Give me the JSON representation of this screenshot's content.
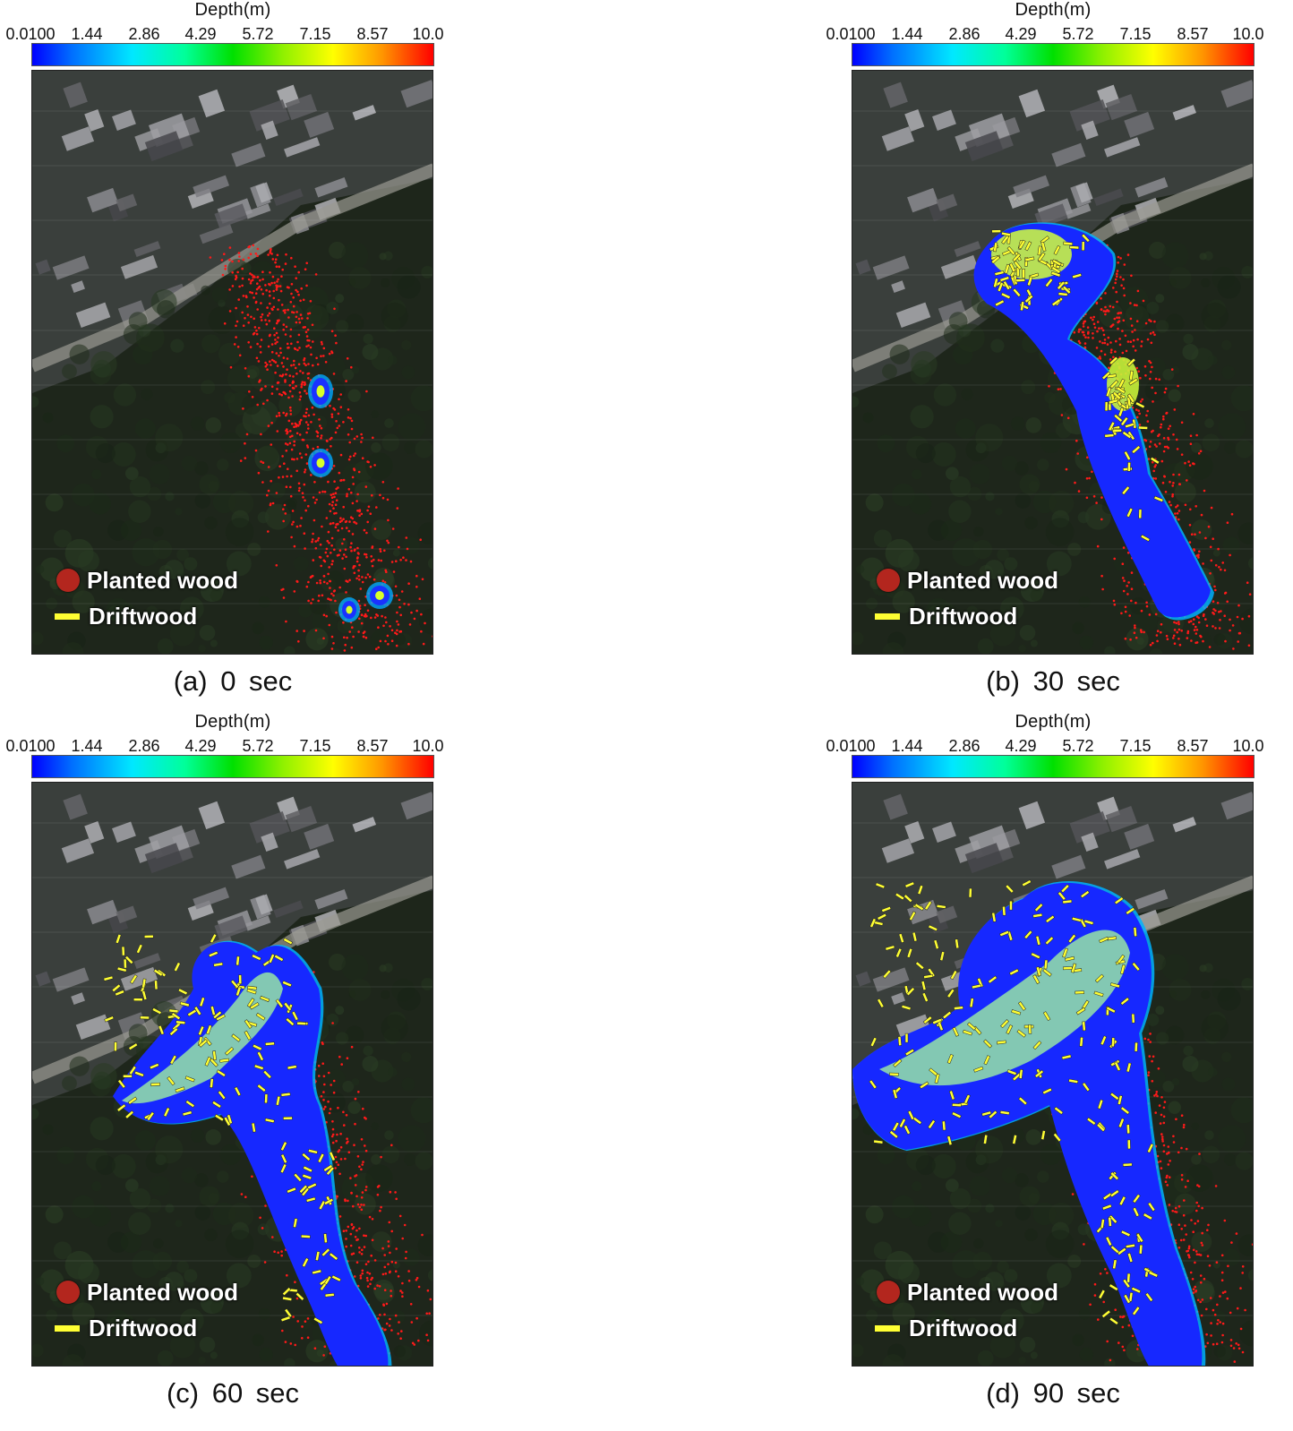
{
  "colorbar": {
    "title": "Depth(m)",
    "ticks": [
      "0.0100",
      "1.44",
      "2.86",
      "4.29",
      "5.72",
      "7.15",
      "8.57",
      "10.0"
    ],
    "colors": [
      "#0000ff",
      "#00e8ff",
      "#00e000",
      "#ffff00",
      "#ff0000"
    ]
  },
  "legend": {
    "planted_label": "Planted wood",
    "driftwood_label": "Driftwood",
    "planted_color": "#b3261e",
    "driftwood_color": "#ffff33"
  },
  "panels": [
    {
      "caption": "(a) 0 sec"
    },
    {
      "caption": "(b) 30 sec"
    },
    {
      "caption": "(c) 60 sec"
    },
    {
      "caption": "(d) 90 sec"
    }
  ]
}
